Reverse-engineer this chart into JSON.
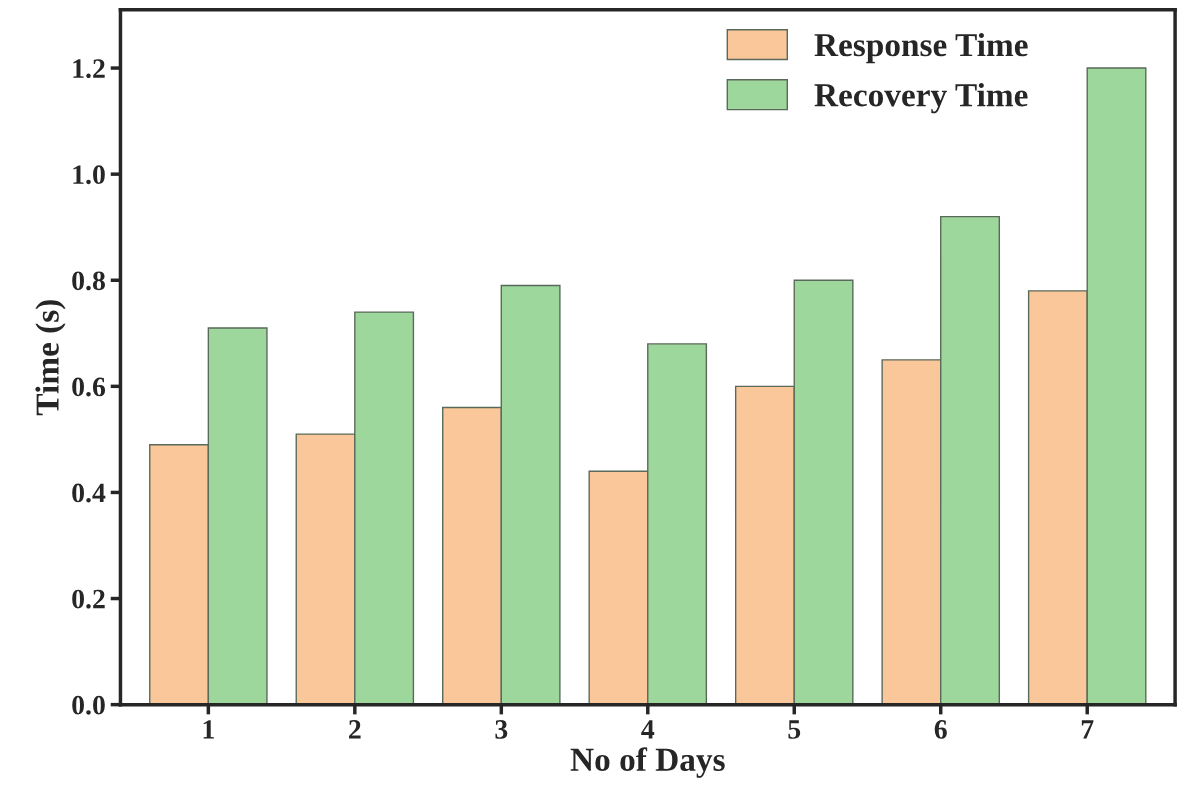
{
  "chart_data": {
    "type": "bar",
    "xlabel": "No of Days",
    "ylabel": "Time (s)",
    "categories": [
      "1",
      "2",
      "3",
      "4",
      "5",
      "6",
      "7"
    ],
    "series": [
      {
        "name": "Response Time",
        "color": "#f9c79a",
        "values": [
          0.49,
          0.51,
          0.56,
          0.44,
          0.6,
          0.65,
          0.78
        ]
      },
      {
        "name": "Recovery Time",
        "color": "#9ed79c",
        "values": [
          0.71,
          0.74,
          0.79,
          0.68,
          0.8,
          0.92,
          1.2
        ]
      }
    ],
    "ylim": [
      0,
      1.31
    ],
    "yticks": [
      {
        "value": 0,
        "label": "0.0"
      },
      0.2,
      0.4,
      0.6,
      0.8,
      {
        "value": 1,
        "label": "1.0"
      },
      1.2
    ],
    "grid": false,
    "legend": "top right"
  }
}
